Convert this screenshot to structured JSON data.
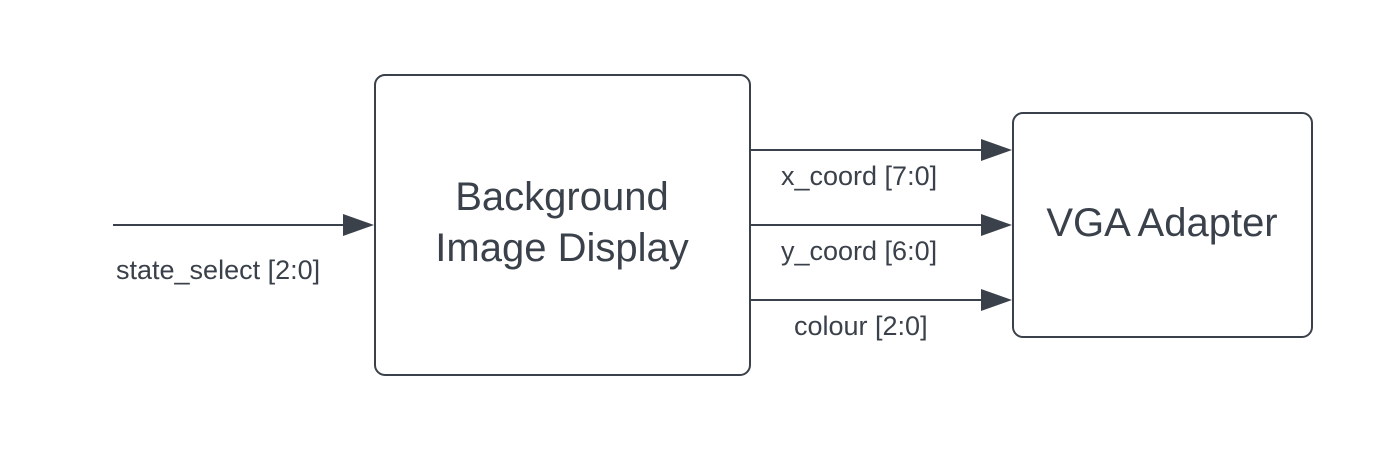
{
  "blocks": {
    "background_display": {
      "line1": "Background",
      "line2": "Image Display"
    },
    "vga_adapter": {
      "label": "VGA Adapter"
    }
  },
  "signals": {
    "state_select": "state_select [2:0]",
    "x_coord": "x_coord [7:0]",
    "y_coord": "y_coord [6:0]",
    "colour": "colour [2:0]"
  },
  "colors": {
    "stroke": "#3a414a",
    "text": "#3a414a",
    "background": "#ffffff"
  }
}
